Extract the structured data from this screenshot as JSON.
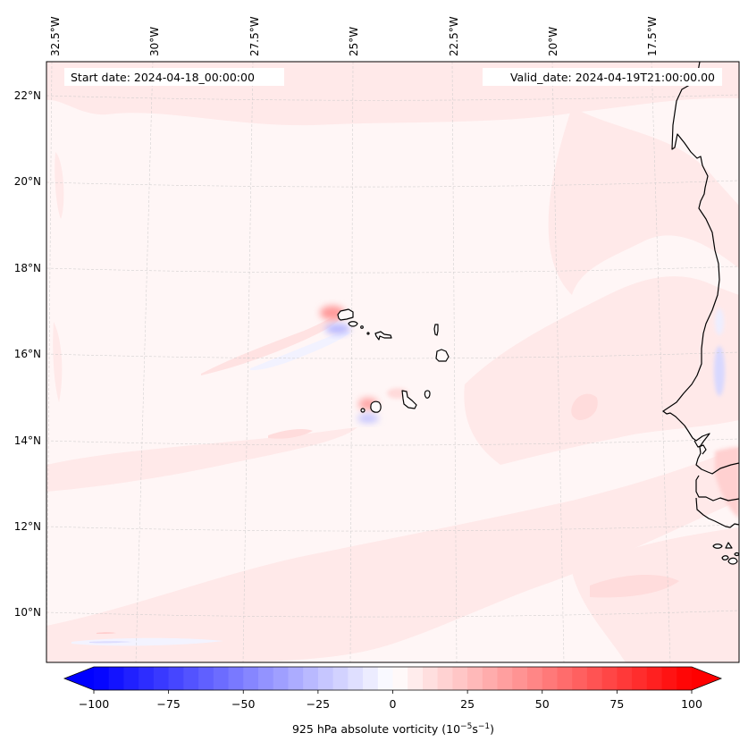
{
  "chart_data": {
    "type": "heatmap",
    "title": "",
    "annotations": {
      "start_date": "Start date: 2024-04-18_00:00:00",
      "valid_date": "Valid_date: 2024-04-19T21:00:00.00"
    },
    "longitude_ticks": [
      "32.5°W",
      "30°W",
      "27.5°W",
      "25°W",
      "22.5°W",
      "20°W",
      "17.5°W"
    ],
    "latitude_ticks": [
      "22°N",
      "20°N",
      "18°N",
      "16°N",
      "14°N",
      "12°N",
      "10°N"
    ],
    "lon_range": [
      -32.6,
      -15.7
    ],
    "lat_range": [
      8.9,
      22.8
    ],
    "grid": true,
    "field": "925 hPa absolute vorticity",
    "colorbar": {
      "label": "925 hPa absolute vorticity (10",
      "label_exp1": "−5",
      "label_mid": "s",
      "label_exp2": "−1",
      "label_end": ")",
      "ticks": [
        "−100",
        "−75",
        "−50",
        "−25",
        "0",
        "25",
        "50",
        "75",
        "100"
      ],
      "tick_values": [
        -100,
        -75,
        -50,
        -25,
        0,
        25,
        50,
        75,
        100
      ],
      "vmin": -100,
      "vmax": 100,
      "step": 5,
      "extend": "both",
      "colormap": "bwr",
      "placement": "bottom"
    },
    "features": {
      "coastline_region": "West Africa (Western Sahara, Mauritania, Senegal, Gambia, Guinea-Bissau)",
      "islands": "Cape Verde"
    },
    "notable_values": [
      {
        "location": "NW of Santo Antão (Cape Verde)",
        "sign": "positive",
        "approx": 20
      },
      {
        "location": "SW of Santo Antão (Cape Verde)",
        "sign": "negative",
        "approx": -10
      },
      {
        "location": "NW of Fogo (Cape Verde)",
        "sign": "positive",
        "approx": 15
      },
      {
        "location": "S of Fogo (Cape Verde)",
        "sign": "negative",
        "approx": -10
      },
      {
        "location": "Offshore Mauritania ~15.5°N 17°W",
        "sign": "negative",
        "approx": -10
      },
      {
        "location": "Gambia / Senegal coast ~13°N",
        "sign": "positive",
        "approx": 15
      },
      {
        "location": "Background ocean",
        "sign": "positive",
        "approx": 3
      }
    ]
  }
}
